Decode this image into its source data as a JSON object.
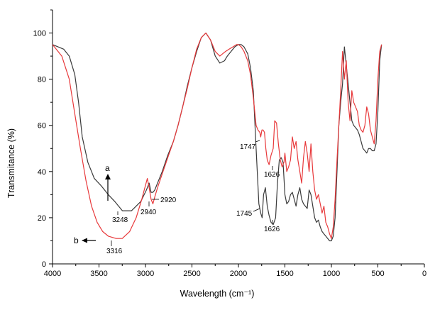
{
  "chart_data": {
    "type": "line",
    "xlabel": "Wavelength (cm⁻¹)",
    "ylabel": "Transmitance (%)",
    "xlim": [
      4000,
      0
    ],
    "ylim": [
      0,
      110
    ],
    "x_ticks": [
      4000,
      3500,
      3000,
      2500,
      2000,
      1500,
      1000,
      500,
      0
    ],
    "y_ticks": [
      0,
      20,
      40,
      60,
      80,
      100
    ],
    "x_tick_labels": [
      "4000",
      "3500",
      "3000",
      "2500",
      "2000",
      "1500",
      "1000",
      "500",
      "0"
    ],
    "y_tick_labels": [
      "0",
      "20",
      "40",
      "60",
      "80",
      "100"
    ],
    "grid": false,
    "series": [
      {
        "name": "a",
        "color": "#3a3a3a",
        "x": [
          4000,
          3880,
          3820,
          3760,
          3720,
          3680,
          3620,
          3550,
          3480,
          3400,
          3330,
          3248,
          3150,
          3050,
          2990,
          2960,
          2940,
          2920,
          2900,
          2870,
          2820,
          2760,
          2700,
          2650,
          2600,
          2550,
          2500,
          2450,
          2400,
          2350,
          2300,
          2250,
          2200,
          2150,
          2120,
          2080,
          2040,
          2000,
          1970,
          1940,
          1900,
          1870,
          1840,
          1810,
          1780,
          1760,
          1745,
          1730,
          1710,
          1690,
          1670,
          1650,
          1626,
          1600,
          1580,
          1560,
          1540,
          1520,
          1500,
          1480,
          1460,
          1440,
          1420,
          1400,
          1380,
          1360,
          1340,
          1320,
          1300,
          1280,
          1260,
          1240,
          1220,
          1200,
          1180,
          1160,
          1140,
          1120,
          1100,
          1080,
          1060,
          1040,
          1020,
          1000,
          980,
          960,
          940,
          920,
          900,
          880,
          860,
          840,
          820,
          800,
          780,
          760,
          740,
          720,
          700,
          680,
          660,
          640,
          620,
          600,
          580,
          560,
          540,
          520,
          500,
          480,
          460
        ],
        "y": [
          95,
          93,
          90,
          82,
          70,
          55,
          44,
          37,
          34,
          30,
          27,
          23,
          23,
          27,
          32,
          35,
          31,
          31,
          32,
          35,
          40,
          47,
          53,
          60,
          68,
          77,
          85,
          92,
          98,
          100,
          97,
          90,
          87,
          88,
          90,
          92,
          94,
          95,
          95,
          94,
          91,
          85,
          75,
          50,
          26,
          22,
          20,
          30,
          33,
          25,
          21,
          18,
          17,
          20,
          35,
          45,
          46,
          44,
          30,
          26,
          27,
          30,
          31,
          28,
          25,
          30,
          33,
          28,
          26,
          25,
          24,
          32,
          30,
          25,
          20,
          18,
          19,
          16,
          14,
          13,
          12,
          11,
          10,
          10,
          12,
          20,
          40,
          60,
          70,
          78,
          94,
          86,
          78,
          70,
          62,
          60,
          59,
          58,
          56,
          53,
          50,
          49,
          48,
          50,
          50,
          49,
          49,
          52,
          66,
          88,
          95
        ]
      },
      {
        "name": "b",
        "color": "#e8393b",
        "x": [
          4000,
          3900,
          3820,
          3760,
          3700,
          3640,
          3580,
          3520,
          3460,
          3400,
          3316,
          3250,
          3170,
          3100,
          3040,
          3000,
          2980,
          2960,
          2940,
          2920,
          2900,
          2870,
          2820,
          2760,
          2700,
          2650,
          2600,
          2550,
          2500,
          2450,
          2400,
          2350,
          2300,
          2250,
          2200,
          2170,
          2140,
          2100,
          2060,
          2020,
          2000,
          1970,
          1940,
          1900,
          1870,
          1840,
          1810,
          1790,
          1770,
          1760,
          1747,
          1735,
          1720,
          1705,
          1690,
          1670,
          1650,
          1626,
          1610,
          1590,
          1570,
          1550,
          1530,
          1510,
          1500,
          1480,
          1460,
          1440,
          1420,
          1400,
          1380,
          1360,
          1340,
          1320,
          1300,
          1280,
          1260,
          1240,
          1220,
          1200,
          1180,
          1160,
          1140,
          1120,
          1100,
          1080,
          1060,
          1040,
          1020,
          1000,
          980,
          960,
          940,
          920,
          900,
          880,
          860,
          840,
          820,
          800,
          780,
          760,
          740,
          720,
          700,
          680,
          660,
          640,
          620,
          600,
          580,
          560,
          540,
          520,
          500,
          480,
          460
        ],
        "y": [
          95,
          90,
          80,
          65,
          50,
          36,
          25,
          18,
          14,
          12,
          11,
          11,
          14,
          20,
          28,
          34,
          37,
          33,
          28,
          26,
          29,
          33,
          39,
          46,
          53,
          60,
          68,
          76,
          85,
          93,
          98,
          100,
          97,
          92,
          90,
          91,
          92,
          93,
          94,
          95,
          95,
          94,
          92,
          88,
          82,
          72,
          60,
          58,
          57,
          55,
          58,
          58,
          57,
          50,
          45,
          43,
          47,
          50,
          62,
          61,
          52,
          45,
          42,
          44,
          48,
          40,
          42,
          45,
          55,
          50,
          53,
          45,
          40,
          35,
          46,
          53,
          48,
          40,
          52,
          40,
          32,
          28,
          30,
          26,
          22,
          25,
          18,
          16,
          13,
          11,
          16,
          28,
          45,
          60,
          75,
          92,
          80,
          88,
          70,
          62,
          75,
          70,
          68,
          66,
          60,
          58,
          57,
          60,
          68,
          65,
          58,
          55,
          52,
          62,
          80,
          92,
          95
        ]
      }
    ],
    "annotations": [
      {
        "text": "a",
        "kind": "letter"
      },
      {
        "text": "b",
        "kind": "letter"
      },
      {
        "text": "3248"
      },
      {
        "text": "3316"
      },
      {
        "text": "2940"
      },
      {
        "text": "2920"
      },
      {
        "text": "1747"
      },
      {
        "text": "1626"
      },
      {
        "text": "1745"
      },
      {
        "text": "1626"
      }
    ]
  }
}
